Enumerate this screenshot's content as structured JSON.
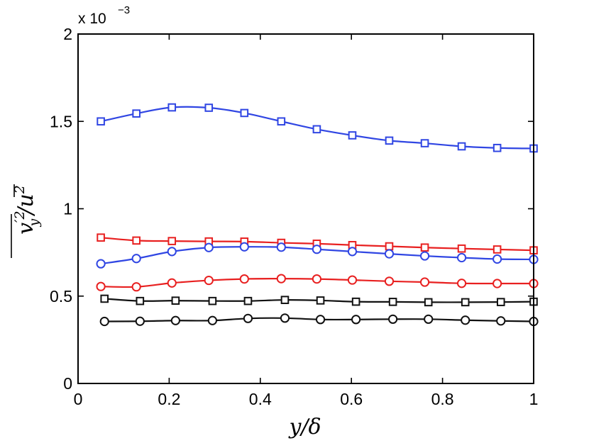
{
  "chart_data": {
    "type": "line",
    "title": "",
    "xlabel": "y/δ",
    "ylabel": "v′y² / ū²",
    "ylabel_parts": {
      "var": "v",
      "prime_sup": "′2",
      "sub": "y",
      "sep": "/",
      "den": "u",
      "den_sup": "2"
    },
    "xlim": [
      0,
      1
    ],
    "ylim": [
      0,
      2.0
    ],
    "y_multiplier": "x 10",
    "y_multiplier_exp": "−3",
    "xticks": [
      0,
      0.2,
      0.4,
      0.6,
      0.8,
      1
    ],
    "xtick_labels": [
      "0",
      "0.2",
      "0.4",
      "0.6",
      "0.8",
      "1"
    ],
    "yticks": [
      0,
      0.5,
      1,
      1.5,
      2
    ],
    "ytick_labels": [
      "0",
      "0.5",
      "1",
      "1.5",
      "2"
    ],
    "grid": false,
    "series": [
      {
        "name": "blue squares",
        "color": "#3046e3",
        "marker": "square",
        "x": [
          0.05,
          0.128,
          0.206,
          0.287,
          0.365,
          0.446,
          0.524,
          0.602,
          0.683,
          0.761,
          0.842,
          0.92,
          1.0
        ],
        "y": [
          1.5,
          1.545,
          1.58,
          1.578,
          1.548,
          1.5,
          1.455,
          1.42,
          1.39,
          1.375,
          1.357,
          1.348,
          1.345
        ]
      },
      {
        "name": "red squares",
        "color": "#e82020",
        "marker": "square",
        "x": [
          0.05,
          0.128,
          0.206,
          0.287,
          0.365,
          0.446,
          0.524,
          0.602,
          0.683,
          0.761,
          0.842,
          0.92,
          1.0
        ],
        "y": [
          0.835,
          0.818,
          0.815,
          0.813,
          0.812,
          0.805,
          0.8,
          0.792,
          0.785,
          0.778,
          0.772,
          0.767,
          0.762
        ]
      },
      {
        "name": "blue circles",
        "color": "#3046e3",
        "marker": "circle",
        "x": [
          0.05,
          0.128,
          0.206,
          0.287,
          0.365,
          0.446,
          0.524,
          0.602,
          0.683,
          0.761,
          0.842,
          0.92,
          1.0
        ],
        "y": [
          0.685,
          0.715,
          0.755,
          0.778,
          0.782,
          0.78,
          0.768,
          0.755,
          0.742,
          0.73,
          0.72,
          0.712,
          0.71
        ]
      },
      {
        "name": "red circles",
        "color": "#e82020",
        "marker": "circle",
        "x": [
          0.05,
          0.128,
          0.206,
          0.287,
          0.365,
          0.446,
          0.524,
          0.602,
          0.683,
          0.761,
          0.842,
          0.92,
          1.0
        ],
        "y": [
          0.555,
          0.553,
          0.575,
          0.59,
          0.598,
          0.6,
          0.598,
          0.592,
          0.585,
          0.58,
          0.573,
          0.572,
          0.572
        ]
      },
      {
        "name": "black squares",
        "color": "#111111",
        "marker": "square",
        "x": [
          0.058,
          0.136,
          0.214,
          0.295,
          0.373,
          0.454,
          0.532,
          0.61,
          0.691,
          0.769,
          0.85,
          0.928,
          1.0
        ],
        "y": [
          0.485,
          0.472,
          0.474,
          0.472,
          0.472,
          0.478,
          0.475,
          0.468,
          0.467,
          0.465,
          0.465,
          0.466,
          0.468
        ]
      },
      {
        "name": "black circles",
        "color": "#111111",
        "marker": "circle",
        "x": [
          0.058,
          0.136,
          0.214,
          0.295,
          0.373,
          0.454,
          0.532,
          0.61,
          0.691,
          0.769,
          0.85,
          0.928,
          1.0
        ],
        "y": [
          0.355,
          0.356,
          0.36,
          0.36,
          0.372,
          0.374,
          0.366,
          0.366,
          0.368,
          0.368,
          0.362,
          0.358,
          0.355
        ]
      }
    ]
  }
}
